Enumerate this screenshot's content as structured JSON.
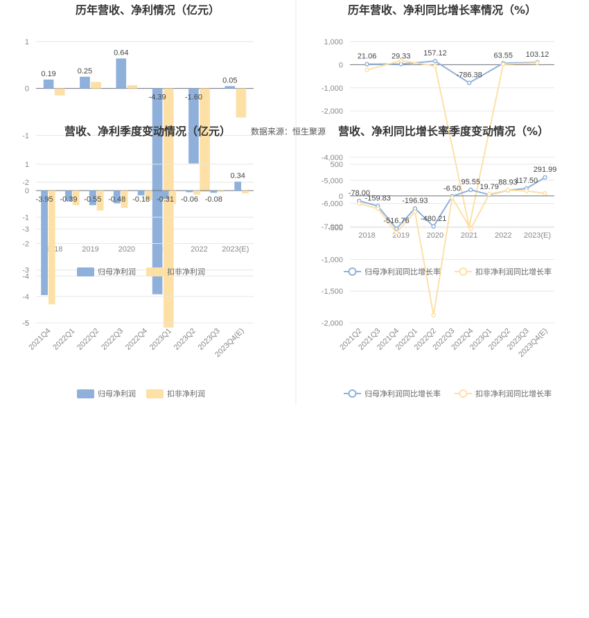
{
  "source_label": "数据来源：恒生聚源",
  "colors": {
    "blue": "#8eb0db",
    "orange": "#fde0a6",
    "blue_dark": "#8eb0db",
    "orange_light": "#fde3a8"
  },
  "legend_bar": [
    "归母净利润",
    "扣非净利润"
  ],
  "legend_line": [
    "归母净利润同比增长率",
    "扣非净利润同比增长率"
  ],
  "chart_data": [
    {
      "id": "annual_profit",
      "type": "bar",
      "title": "历年营收、净利情况（亿元）",
      "categories": [
        "2018",
        "2019",
        "2020",
        "2021",
        "2022",
        "2023(E)"
      ],
      "series": [
        {
          "name": "归母净利润",
          "values": [
            0.19,
            0.25,
            0.64,
            -4.39,
            -1.6,
            0.05
          ]
        },
        {
          "name": "扣非净利润",
          "values": [
            -0.15,
            0.14,
            0.07,
            -5.1,
            -2.2,
            -0.62
          ]
        }
      ],
      "data_labels": [
        "0.19",
        "0.25",
        "0.64",
        "-4.39",
        "-1.60",
        "0.05"
      ],
      "ylim": [
        -5,
        1
      ],
      "yticks": [
        1,
        0,
        -1,
        -2,
        -3,
        -4,
        -5
      ]
    },
    {
      "id": "annual_growth",
      "type": "line",
      "title": "历年营收、净利同比增长率情况（%）",
      "categories": [
        "2018",
        "2019",
        "2020",
        "2021",
        "2022",
        "2023(E)"
      ],
      "series": [
        {
          "name": "归母净利润同比增长率",
          "values": [
            21.06,
            29.33,
            157.12,
            -786.38,
            63.55,
            103.12
          ]
        },
        {
          "name": "扣非净利润同比增长率",
          "values": [
            -230,
            180,
            -60,
            -7000,
            20,
            80
          ]
        }
      ],
      "data_labels": [
        "21.06",
        "29.33",
        "157.12",
        "-786.38",
        "63.55",
        "103.12"
      ],
      "ylim": [
        -7000,
        1000
      ],
      "yticks": [
        1000,
        0,
        -1000,
        -2000,
        -4000,
        -5000,
        -6000,
        -7000
      ],
      "ytick_labels": [
        "1,000",
        "0",
        "-1,000",
        "-2,000",
        "-4,000",
        "-5,000",
        "-6,000",
        "-7,000"
      ]
    },
    {
      "id": "quarterly_profit",
      "type": "bar",
      "title": "营收、净利季度变动情况（亿元）",
      "categories": [
        "2021Q4",
        "2022Q1",
        "2022Q2",
        "2022Q3",
        "2022Q4",
        "2023Q1",
        "2023Q2",
        "2023Q3",
        "2023Q4(E)"
      ],
      "series": [
        {
          "name": "归母净利润",
          "values": [
            -3.95,
            -0.39,
            -0.55,
            -0.48,
            -0.18,
            -0.31,
            -0.06,
            -0.08,
            0.34
          ]
        },
        {
          "name": "扣非净利润",
          "values": [
            -4.3,
            -0.55,
            -0.75,
            -0.65,
            -0.35,
            -0.5,
            -0.15,
            -0.05,
            -0.1
          ]
        }
      ],
      "data_labels": [
        "-3.95",
        "-0.39",
        "-0.55",
        "-0.48",
        "-0.18",
        "-0.31",
        "-0.06",
        "-0.08",
        "0.34"
      ],
      "ylim": [
        -5,
        1
      ],
      "yticks": [
        1,
        0,
        -1,
        -2,
        -3,
        -4,
        -5
      ]
    },
    {
      "id": "quarterly_growth",
      "type": "line",
      "title": "营收、净利同比增长率季度变动情况（%）",
      "categories": [
        "2021Q2",
        "2021Q3",
        "2021Q4",
        "2022Q1",
        "2022Q2",
        "2022Q3",
        "2022Q4",
        "2023Q1",
        "2023Q2",
        "2023Q3",
        "2023Q4(E)"
      ],
      "series": [
        {
          "name": "归母净利润同比增长率",
          "values": [
            -78.0,
            -159.83,
            -516.76,
            -196.93,
            -480.21,
            -6.5,
            95.55,
            19.79,
            88.93,
            117.5,
            291.99
          ]
        },
        {
          "name": "扣非净利润同比增长率",
          "values": [
            -120,
            -200,
            -580,
            -250,
            -1880,
            -30,
            -520,
            30,
            90,
            80,
            40
          ]
        }
      ],
      "data_labels": [
        "-78.00",
        "-159.83",
        "-516.76",
        "-196.93",
        "-480.21",
        "-6.50",
        "95.55",
        "19.79",
        "88.93",
        "117.50",
        "291.99"
      ],
      "ylim": [
        -2000,
        500
      ],
      "yticks": [
        500,
        0,
        -500,
        -1000,
        -1500,
        -2000
      ],
      "ytick_labels": [
        "500",
        "0",
        "-500",
        "-1,000",
        "-1,500",
        "-2,000"
      ]
    }
  ]
}
